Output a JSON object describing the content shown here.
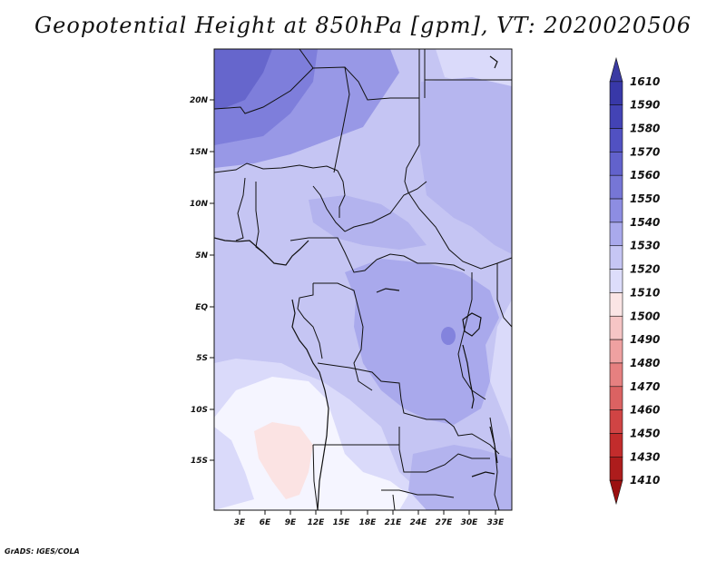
{
  "title": "Geopotential Height at 850hPa [gpm], VT: 2020020506",
  "credit": "GrADS: IGES/COLA",
  "map": {
    "variable": "Geopotential Height at 850hPa",
    "units": "gpm",
    "valid_time": "2020020506",
    "lat_labels": [
      "20N",
      "15N",
      "10N",
      "5N",
      "EQ",
      "5S",
      "10S",
      "15S"
    ],
    "lon_labels": [
      "3E",
      "6E",
      "9E",
      "12E",
      "15E",
      "18E",
      "21E",
      "24E",
      "27E",
      "30E",
      "33E"
    ]
  },
  "colorbar": {
    "levels": [
      {
        "label": "1610",
        "color": "#3b3ba3"
      },
      {
        "label": "1590",
        "color": "#3838a8"
      },
      {
        "label": "1580",
        "color": "#4343b5"
      },
      {
        "label": "1570",
        "color": "#5151c2"
      },
      {
        "label": "1560",
        "color": "#6262cc"
      },
      {
        "label": "1550",
        "color": "#7676d6"
      },
      {
        "label": "1540",
        "color": "#8d8de2"
      },
      {
        "label": "1530",
        "color": "#a9a9ec"
      },
      {
        "label": "1520",
        "color": "#c6c6f4"
      },
      {
        "label": "1510",
        "color": "#ddddfb"
      },
      {
        "label": "1500",
        "color": "#fbe5e5"
      },
      {
        "label": "1490",
        "color": "#f6c5c5"
      },
      {
        "label": "1480",
        "color": "#efa1a1"
      },
      {
        "label": "1470",
        "color": "#e68080"
      },
      {
        "label": "1460",
        "color": "#db6262"
      },
      {
        "label": "1450",
        "color": "#d04444"
      },
      {
        "label": "1430",
        "color": "#c22c2c"
      },
      {
        "label": "1410",
        "color": "#ad1c1c"
      },
      {
        "label": "",
        "color": "#9b1010"
      }
    ]
  }
}
